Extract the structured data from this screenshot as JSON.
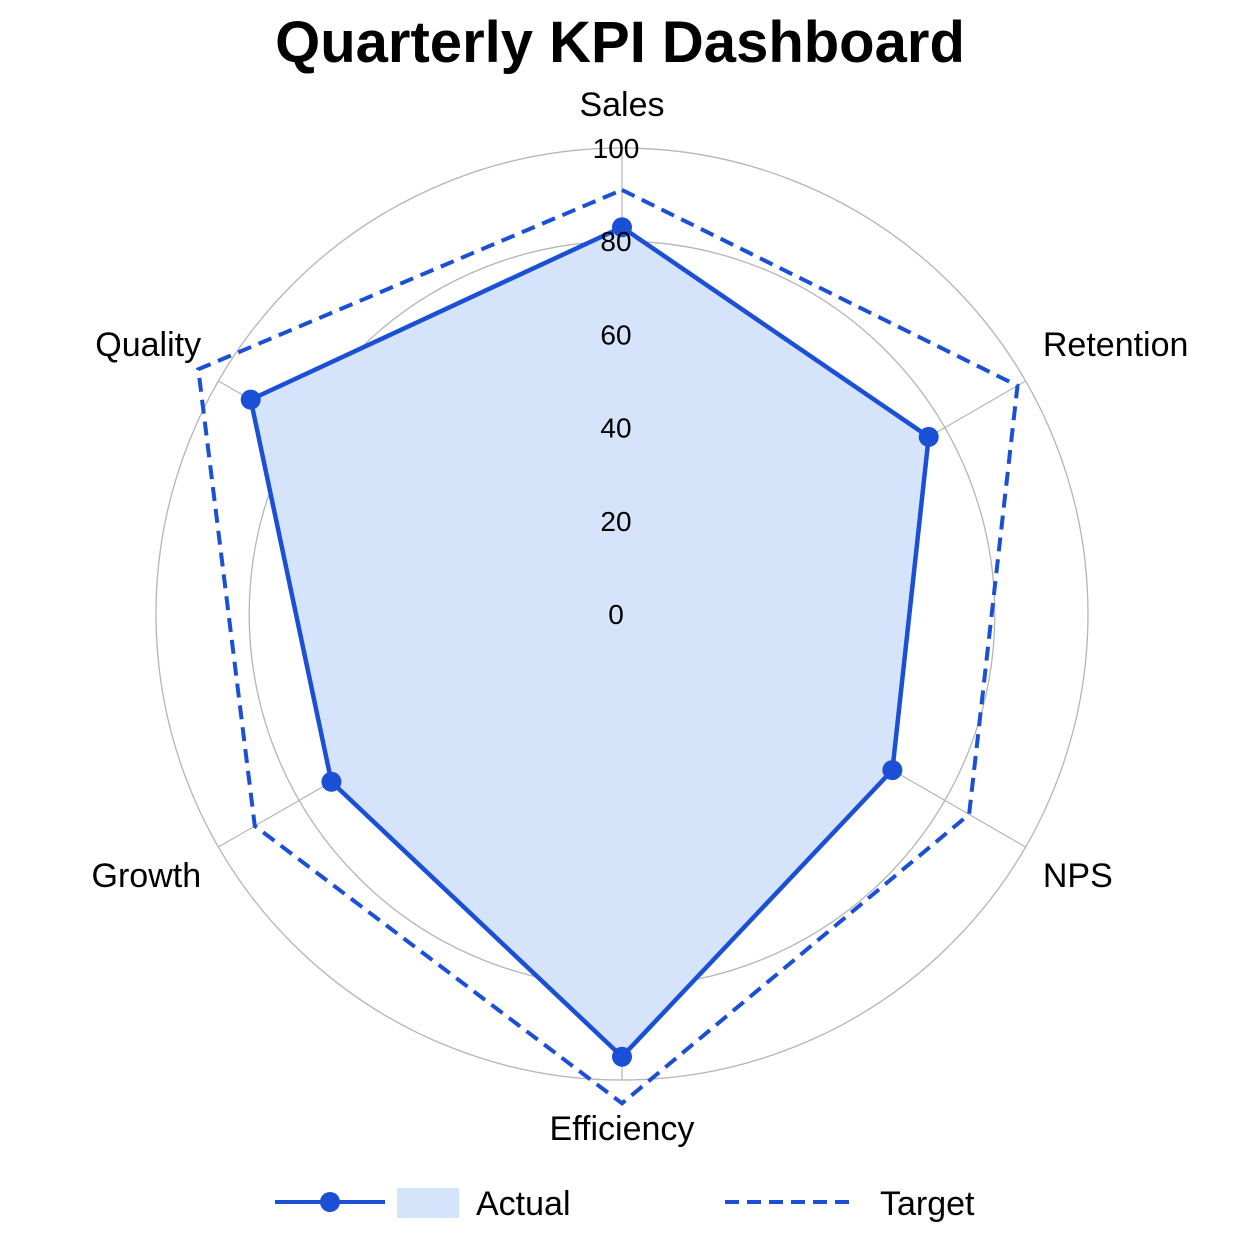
{
  "chart_data": {
    "type": "radar",
    "title": "Quarterly KPI Dashboard",
    "categories": [
      "Sales",
      "Retention",
      "NPS",
      "Efficiency",
      "Growth",
      "Quality"
    ],
    "range": [
      0,
      100
    ],
    "ticks": [
      "0",
      "20",
      "40",
      "60",
      "80",
      "100"
    ],
    "grid": true,
    "legend_position": "bottom",
    "series": [
      {
        "name": "Actual",
        "values": [
          83,
          76,
          67,
          95,
          72,
          92
        ],
        "color": "#1a4fd6",
        "fill": "#d6e4fb",
        "style": "solid",
        "markers": true
      },
      {
        "name": "Target",
        "values": [
          91,
          98,
          86,
          105,
          91,
          105
        ],
        "color": "#1a4fd6",
        "style": "dashed",
        "markers": false
      }
    ]
  },
  "colors": {
    "grid": "#b5b5b5",
    "text": "#000000"
  }
}
